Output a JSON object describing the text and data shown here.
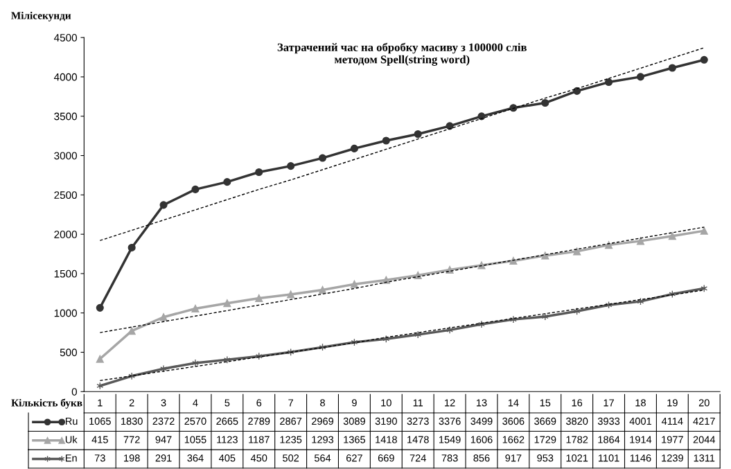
{
  "chart_data": {
    "type": "line",
    "title": "Затрачений час на обробку масиву з 100000 слів\nметодом Spell(string word)",
    "ylabel": "Мілісекунди",
    "xlabel": "Кількість букв",
    "categories": [
      "1",
      "2",
      "3",
      "4",
      "5",
      "6",
      "7",
      "8",
      "9",
      "10",
      "11",
      "12",
      "13",
      "14",
      "15",
      "16",
      "17",
      "18",
      "19",
      "20"
    ],
    "series": [
      {
        "name": "Ru",
        "color": "#333333",
        "marker": "circle",
        "values": [
          1065,
          1830,
          2372,
          2570,
          2665,
          2789,
          2867,
          2969,
          3089,
          3190,
          3273,
          3376,
          3499,
          3606,
          3669,
          3820,
          3933,
          4001,
          4114,
          4217
        ],
        "value_labels": [
          "1065",
          "1830",
          "2372",
          "2570",
          "2665",
          "2789",
          "2867",
          "2969",
          "3089",
          "3190",
          "3273",
          "3376",
          "3499",
          "3606",
          "3669",
          "3820",
          "3933",
          "4001",
          "4114",
          "4217"
        ]
      },
      {
        "name": "Uk",
        "color": "#a6a6a6",
        "marker": "triangle",
        "values": [
          415,
          772,
          947,
          1055,
          1123,
          1187,
          1235,
          1293,
          1365,
          1418,
          1478,
          1549,
          1606,
          1662,
          1729,
          1782,
          1864,
          1914,
          1977,
          2044
        ],
        "value_labels": [
          "415",
          "772",
          "947",
          "1055",
          "1123",
          "1187",
          "1235",
          "1293",
          "1365",
          "1418",
          "1478",
          "1549",
          "1606",
          "1662",
          "1729",
          "1782",
          "1864",
          "1914",
          "1977",
          "2044"
        ]
      },
      {
        "name": "En",
        "color": "#595959",
        "marker": "cross",
        "values": [
          73,
          198,
          291,
          364,
          405,
          450,
          502,
          564,
          627,
          669,
          724,
          783,
          856,
          917,
          953,
          1021,
          1101,
          1146,
          1239,
          1311
        ],
        "value_labels": [
          "73",
          "198",
          "291",
          "364",
          "405",
          "450",
          "502",
          "564",
          "627",
          "669",
          "724",
          "783",
          "856",
          "917",
          "953",
          "1021",
          "1101",
          "1146",
          "1239",
          "1311"
        ]
      },
      {
        "type": "line",
        "color": "#000000",
        "line_style": "dashed",
        "marker": "none",
        "values": [
          1920,
          2050,
          2180,
          2310,
          2440,
          2570,
          2690,
          2820,
          2950,
          3080,
          3210,
          3340,
          3470,
          3600,
          3730,
          3850,
          3980,
          4110,
          4240,
          4370
        ]
      },
      {
        "type": "line",
        "color": "#000000",
        "line_style": "dashed",
        "marker": "none",
        "values": [
          750,
          820,
          890,
          960,
          1030,
          1100,
          1170,
          1240,
          1310,
          1390,
          1460,
          1530,
          1600,
          1670,
          1740,
          1810,
          1880,
          1950,
          2020,
          2090
        ]
      },
      {
        "type": "line",
        "color": "#000000",
        "line_style": "dashed",
        "marker": "none",
        "values": [
          140,
          200,
          260,
          320,
          380,
          440,
          500,
          560,
          620,
          690,
          750,
          810,
          870,
          930,
          990,
          1050,
          1110,
          1170,
          1230,
          1290
        ]
      }
    ],
    "ylim": [
      0,
      4500
    ],
    "yticks": [
      0,
      500,
      1000,
      1500,
      2000,
      2500,
      3000,
      3500,
      4000,
      4500
    ],
    "grid": false,
    "legend": "bottom"
  }
}
